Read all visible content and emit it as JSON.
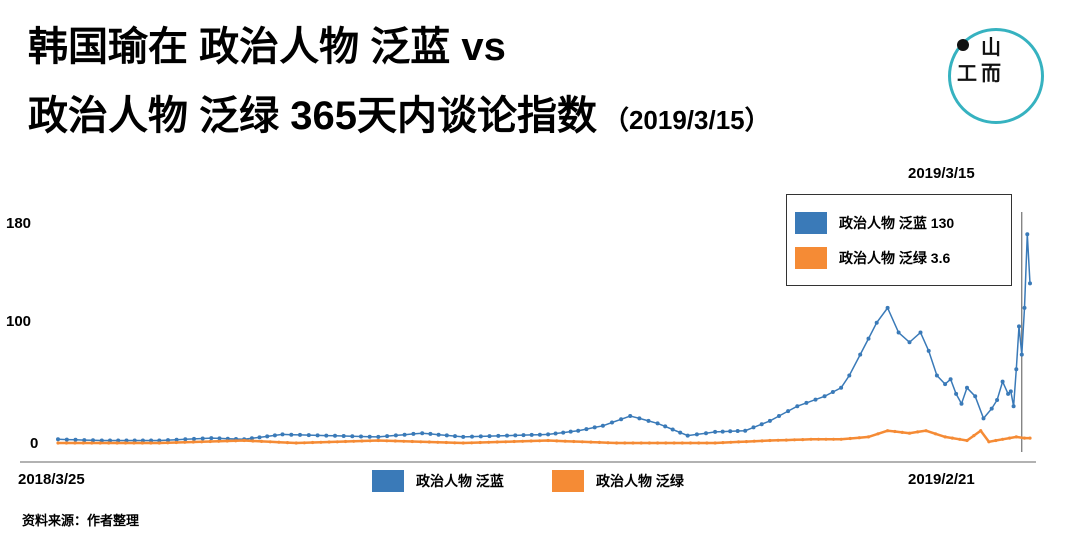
{
  "title": {
    "line1": "韩国瑜在 政治人物 泛蓝 vs",
    "line2": "政治人物 泛绿 365天内谈论指数",
    "date": "（2019/3/15）"
  },
  "logo": {
    "glyph_top": "山",
    "glyph_left": "工",
    "glyph_right": "而"
  },
  "source": "资料来源：作者整理",
  "colors": {
    "blue": "#3a7ab8",
    "orange": "#f58b35",
    "logo_ring": "#36b2c0"
  },
  "chart_data": {
    "type": "line",
    "x_start_label": "2018/3/25",
    "x_marker_label": "2019/2/21",
    "x_end_label": "2019/3/15",
    "x_start": "2018-03-25",
    "x_end": "2019-03-15",
    "ylim": [
      0,
      180
    ],
    "yticks": [
      0,
      100,
      180
    ],
    "grid": false,
    "legend_position": "top-right",
    "series": [
      {
        "name": "政治人物 泛蓝",
        "latest_value": "130",
        "color": "#3a7ab8",
        "points": [
          [
            "2018-03-25",
            3
          ],
          [
            "2018-04-10",
            2
          ],
          [
            "2018-05-01",
            2
          ],
          [
            "2018-05-20",
            4
          ],
          [
            "2018-06-01",
            3
          ],
          [
            "2018-06-15",
            7
          ],
          [
            "2018-07-01",
            6
          ],
          [
            "2018-07-20",
            5
          ],
          [
            "2018-08-05",
            8
          ],
          [
            "2018-08-20",
            5
          ],
          [
            "2018-09-05",
            6
          ],
          [
            "2018-09-20",
            7
          ],
          [
            "2018-10-01",
            10
          ],
          [
            "2018-10-10",
            14
          ],
          [
            "2018-10-20",
            22
          ],
          [
            "2018-10-30",
            16
          ],
          [
            "2018-11-10",
            6
          ],
          [
            "2018-11-20",
            9
          ],
          [
            "2018-12-01",
            10
          ],
          [
            "2018-12-10",
            18
          ],
          [
            "2018-12-20",
            30
          ],
          [
            "2018-12-30",
            38
          ],
          [
            "2019-01-05",
            45
          ],
          [
            "2019-01-08",
            55
          ],
          [
            "2019-01-12",
            72
          ],
          [
            "2019-01-15",
            85
          ],
          [
            "2019-01-18",
            98
          ],
          [
            "2019-01-22",
            110
          ],
          [
            "2019-01-26",
            90
          ],
          [
            "2019-01-30",
            82
          ],
          [
            "2019-02-03",
            90
          ],
          [
            "2019-02-06",
            75
          ],
          [
            "2019-02-09",
            55
          ],
          [
            "2019-02-12",
            48
          ],
          [
            "2019-02-14",
            52
          ],
          [
            "2019-02-16",
            40
          ],
          [
            "2019-02-18",
            32
          ],
          [
            "2019-02-20",
            45
          ],
          [
            "2019-02-23",
            38
          ],
          [
            "2019-02-26",
            20
          ],
          [
            "2019-03-01",
            28
          ],
          [
            "2019-03-03",
            35
          ],
          [
            "2019-03-05",
            50
          ],
          [
            "2019-03-07",
            40
          ],
          [
            "2019-03-08",
            42
          ],
          [
            "2019-03-09",
            30
          ],
          [
            "2019-03-10",
            60
          ],
          [
            "2019-03-11",
            95
          ],
          [
            "2019-03-12",
            72
          ],
          [
            "2019-03-13",
            110
          ],
          [
            "2019-03-14",
            170
          ],
          [
            "2019-03-15",
            130
          ]
        ]
      },
      {
        "name": "政治人物 泛绿",
        "latest_value": "3.6",
        "color": "#f58b35",
        "points": [
          [
            "2018-03-25",
            0
          ],
          [
            "2018-05-01",
            0
          ],
          [
            "2018-06-01",
            2
          ],
          [
            "2018-06-20",
            0
          ],
          [
            "2018-07-20",
            2
          ],
          [
            "2018-08-20",
            0
          ],
          [
            "2018-09-20",
            2
          ],
          [
            "2018-10-15",
            0
          ],
          [
            "2018-11-20",
            0
          ],
          [
            "2018-12-10",
            2
          ],
          [
            "2018-12-25",
            3
          ],
          [
            "2019-01-05",
            3
          ],
          [
            "2019-01-15",
            5
          ],
          [
            "2019-01-22",
            10
          ],
          [
            "2019-01-30",
            8
          ],
          [
            "2019-02-05",
            10
          ],
          [
            "2019-02-12",
            5
          ],
          [
            "2019-02-20",
            2
          ],
          [
            "2019-02-25",
            10
          ],
          [
            "2019-02-28",
            1
          ],
          [
            "2019-03-05",
            3
          ],
          [
            "2019-03-10",
            5
          ],
          [
            "2019-03-13",
            4
          ],
          [
            "2019-03-15",
            4
          ]
        ]
      }
    ]
  }
}
